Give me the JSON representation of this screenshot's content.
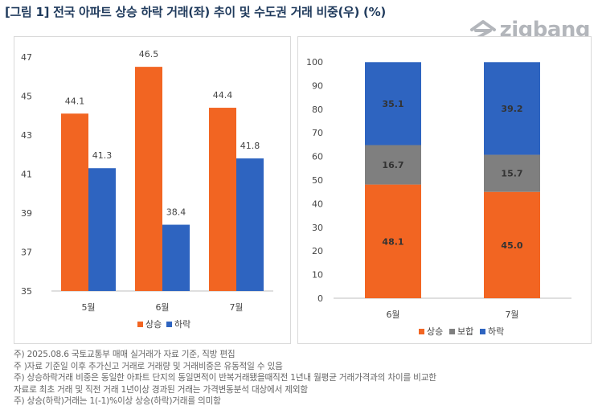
{
  "title": "[그림 1] 전국 아파트 상승 하락 거래(좌) 추이 및 수도권 거래 비중(우) (%)",
  "brand": {
    "logo_text": "zigbang",
    "logo_icon": "zigbang-house-icon"
  },
  "colors": {
    "up": "#f26522",
    "flat": "#7f7f7f",
    "down": "#2e64c0"
  },
  "chart_data": [
    {
      "type": "bar",
      "categories": [
        "5월",
        "6월",
        "7월"
      ],
      "ylim": [
        35,
        47
      ],
      "yticks": [
        "35",
        "37",
        "39",
        "41",
        "43",
        "45",
        "47"
      ],
      "series": [
        {
          "name": "상승",
          "values": [
            44.1,
            46.5,
            44.4
          ],
          "labels": [
            "44.1",
            "46.5",
            "44.4"
          ]
        },
        {
          "name": "하락",
          "values": [
            41.3,
            38.4,
            41.8
          ],
          "labels": [
            "41.3",
            "38.4",
            "41.8"
          ]
        }
      ],
      "legend_position": "bottom",
      "grid": false
    },
    {
      "type": "bar",
      "stacked": true,
      "categories": [
        "6월",
        "7월"
      ],
      "ylim": [
        0,
        100
      ],
      "yticks": [
        "0",
        "10",
        "20",
        "30",
        "40",
        "50",
        "60",
        "70",
        "80",
        "90",
        "100"
      ],
      "series": [
        {
          "name": "상승",
          "values": [
            48.1,
            45.0
          ],
          "labels": [
            "48.1",
            "45.0"
          ]
        },
        {
          "name": "보합",
          "values": [
            16.7,
            15.7
          ],
          "labels": [
            "16.7",
            "15.7"
          ]
        },
        {
          "name": "하락",
          "values": [
            35.1,
            39.2
          ],
          "labels": [
            "35.1",
            "39.2"
          ]
        }
      ],
      "legend_position": "bottom",
      "grid": false
    }
  ],
  "notes": [
    "주) 2025.08.6 국토교통부 매매 실거래가 자료 기준, 직방 편집",
    "주 )자료 기준일 이후 추가신고 거래로 거래량 및 거래비중은 유동적일 수 있음",
    "주) 상승하락거래 비중은 동일한 아파트 단지의 동일면적이 반복거래됐을때직전 1년내 월평균 거래가격과의 차이를 비교한",
    "자료로 최초 거래 및 직전 거래 1년이상 경과된 거래는 가격변동분석 대상에서 제외함",
    "주) 상승(하락)거래는 1(-1)%이상 상승(하락)거래를 의미함"
  ]
}
